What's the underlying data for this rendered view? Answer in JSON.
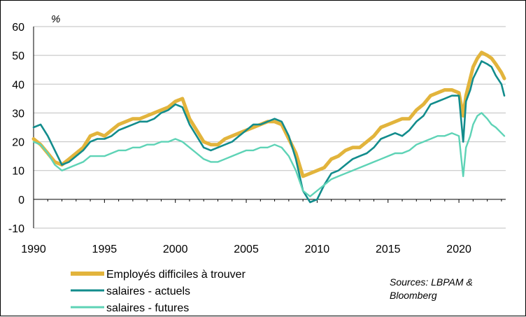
{
  "chart_data": {
    "type": "line",
    "unit_label": "%",
    "xlim": [
      1990,
      2023.3
    ],
    "ylim": [
      -10,
      60
    ],
    "x_ticks": [
      1990,
      1995,
      2000,
      2005,
      2010,
      2015,
      2020
    ],
    "y_ticks": [
      -10,
      0,
      10,
      20,
      30,
      40,
      50,
      60
    ],
    "x_tick_labels": [
      "1990",
      "1995",
      "2000",
      "2005",
      "2010",
      "2015",
      "2020"
    ],
    "y_tick_labels": [
      "-10",
      "0",
      "10",
      "20",
      "30",
      "40",
      "50",
      "60"
    ],
    "grid": "horizontal",
    "legend_position": "bottom-left",
    "source_line1": "Sources: LBPAM &",
    "source_line2": "Bloomberg",
    "series": [
      {
        "name": "Employés difficiles à trouver",
        "color": "#E2B43C",
        "x": [
          1990,
          1990.5,
          1991,
          1991.5,
          1992,
          1992.5,
          1993,
          1993.5,
          1994,
          1994.5,
          1995,
          1995.5,
          1996,
          1996.5,
          1997,
          1997.5,
          1998,
          1998.5,
          1999,
          1999.5,
          2000,
          2000.5,
          2001,
          2001.5,
          2002,
          2002.5,
          2003,
          2003.5,
          2004,
          2004.5,
          2005,
          2005.5,
          2006,
          2006.5,
          2007,
          2007.5,
          2008,
          2008.5,
          2009,
          2009.5,
          2010,
          2010.5,
          2011,
          2011.5,
          2012,
          2012.5,
          2013,
          2013.5,
          2014,
          2014.5,
          2015,
          2015.5,
          2016,
          2016.5,
          2017,
          2017.5,
          2018,
          2018.5,
          2019,
          2019.5,
          2020,
          2020.3,
          2020.5,
          2020.8,
          2021,
          2021.3,
          2021.6,
          2022,
          2022.3,
          2022.6,
          2023,
          2023.2
        ],
        "values": [
          21,
          19,
          16,
          13,
          12,
          14,
          16,
          18,
          22,
          23,
          22,
          24,
          26,
          27,
          28,
          28,
          29,
          30,
          31,
          32,
          34,
          35,
          28,
          24,
          20,
          19,
          19,
          21,
          22,
          23,
          24,
          25,
          26,
          27,
          27,
          26,
          21,
          16,
          8,
          9,
          10,
          11,
          14,
          15,
          17,
          18,
          18,
          20,
          22,
          25,
          26,
          27,
          28,
          28,
          31,
          33,
          36,
          37,
          38,
          38,
          37,
          29,
          36,
          42,
          46,
          49,
          51,
          50,
          49,
          47,
          44,
          42
        ]
      },
      {
        "name": "salaires - actuels",
        "color": "#128C8C",
        "x": [
          1990,
          1990.5,
          1991,
          1991.5,
          1992,
          1992.5,
          1993,
          1993.5,
          1994,
          1994.5,
          1995,
          1995.5,
          1996,
          1996.5,
          1997,
          1997.5,
          1998,
          1998.5,
          1999,
          1999.5,
          2000,
          2000.5,
          2001,
          2001.5,
          2002,
          2002.5,
          2003,
          2003.5,
          2004,
          2004.5,
          2005,
          2005.5,
          2006,
          2006.5,
          2007,
          2007.5,
          2008,
          2008.5,
          2009,
          2009.5,
          2010,
          2010.5,
          2011,
          2011.5,
          2012,
          2012.5,
          2013,
          2013.5,
          2014,
          2014.5,
          2015,
          2015.5,
          2016,
          2016.5,
          2017,
          2017.5,
          2018,
          2018.5,
          2019,
          2019.5,
          2020,
          2020.3,
          2020.5,
          2020.8,
          2021,
          2021.3,
          2021.6,
          2022,
          2022.3,
          2022.6,
          2023,
          2023.2
        ],
        "values": [
          25,
          26,
          22,
          17,
          12,
          13,
          15,
          17,
          20,
          21,
          21,
          22,
          24,
          25,
          26,
          27,
          27,
          28,
          30,
          31,
          33,
          32,
          26,
          22,
          18,
          17,
          18,
          19,
          20,
          22,
          24,
          26,
          26,
          27,
          28,
          27,
          22,
          14,
          3,
          -1,
          0,
          5,
          9,
          10,
          12,
          14,
          15,
          16,
          18,
          21,
          22,
          23,
          22,
          24,
          27,
          29,
          33,
          34,
          35,
          36,
          36,
          20,
          34,
          38,
          42,
          45,
          48,
          47,
          46,
          43,
          40,
          36
        ]
      },
      {
        "name": "salaires - futures",
        "color": "#5ED3B6",
        "x": [
          1990,
          1990.5,
          1991,
          1991.5,
          1992,
          1992.5,
          1993,
          1993.5,
          1994,
          1994.5,
          1995,
          1995.5,
          1996,
          1996.5,
          1997,
          1997.5,
          1998,
          1998.5,
          1999,
          1999.5,
          2000,
          2000.5,
          2001,
          2001.5,
          2002,
          2002.5,
          2003,
          2003.5,
          2004,
          2004.5,
          2005,
          2005.5,
          2006,
          2006.5,
          2007,
          2007.5,
          2008,
          2008.5,
          2009,
          2009.5,
          2010,
          2010.5,
          2011,
          2011.5,
          2012,
          2012.5,
          2013,
          2013.5,
          2014,
          2014.5,
          2015,
          2015.5,
          2016,
          2016.5,
          2017,
          2017.5,
          2018,
          2018.5,
          2019,
          2019.5,
          2020,
          2020.3,
          2020.5,
          2020.8,
          2021,
          2021.3,
          2021.6,
          2022,
          2022.3,
          2022.6,
          2023,
          2023.2
        ],
        "values": [
          20,
          19,
          16,
          12,
          10,
          11,
          12,
          13,
          15,
          15,
          15,
          16,
          17,
          17,
          18,
          18,
          19,
          19,
          20,
          20,
          21,
          20,
          18,
          16,
          14,
          13,
          13,
          14,
          15,
          16,
          17,
          17,
          18,
          18,
          19,
          18,
          15,
          10,
          3,
          1,
          3,
          5,
          7,
          8,
          9,
          10,
          11,
          12,
          13,
          14,
          15,
          16,
          16,
          17,
          19,
          20,
          21,
          22,
          22,
          23,
          22,
          8,
          18,
          22,
          26,
          29,
          30,
          28,
          26,
          25,
          23,
          22
        ]
      }
    ]
  }
}
